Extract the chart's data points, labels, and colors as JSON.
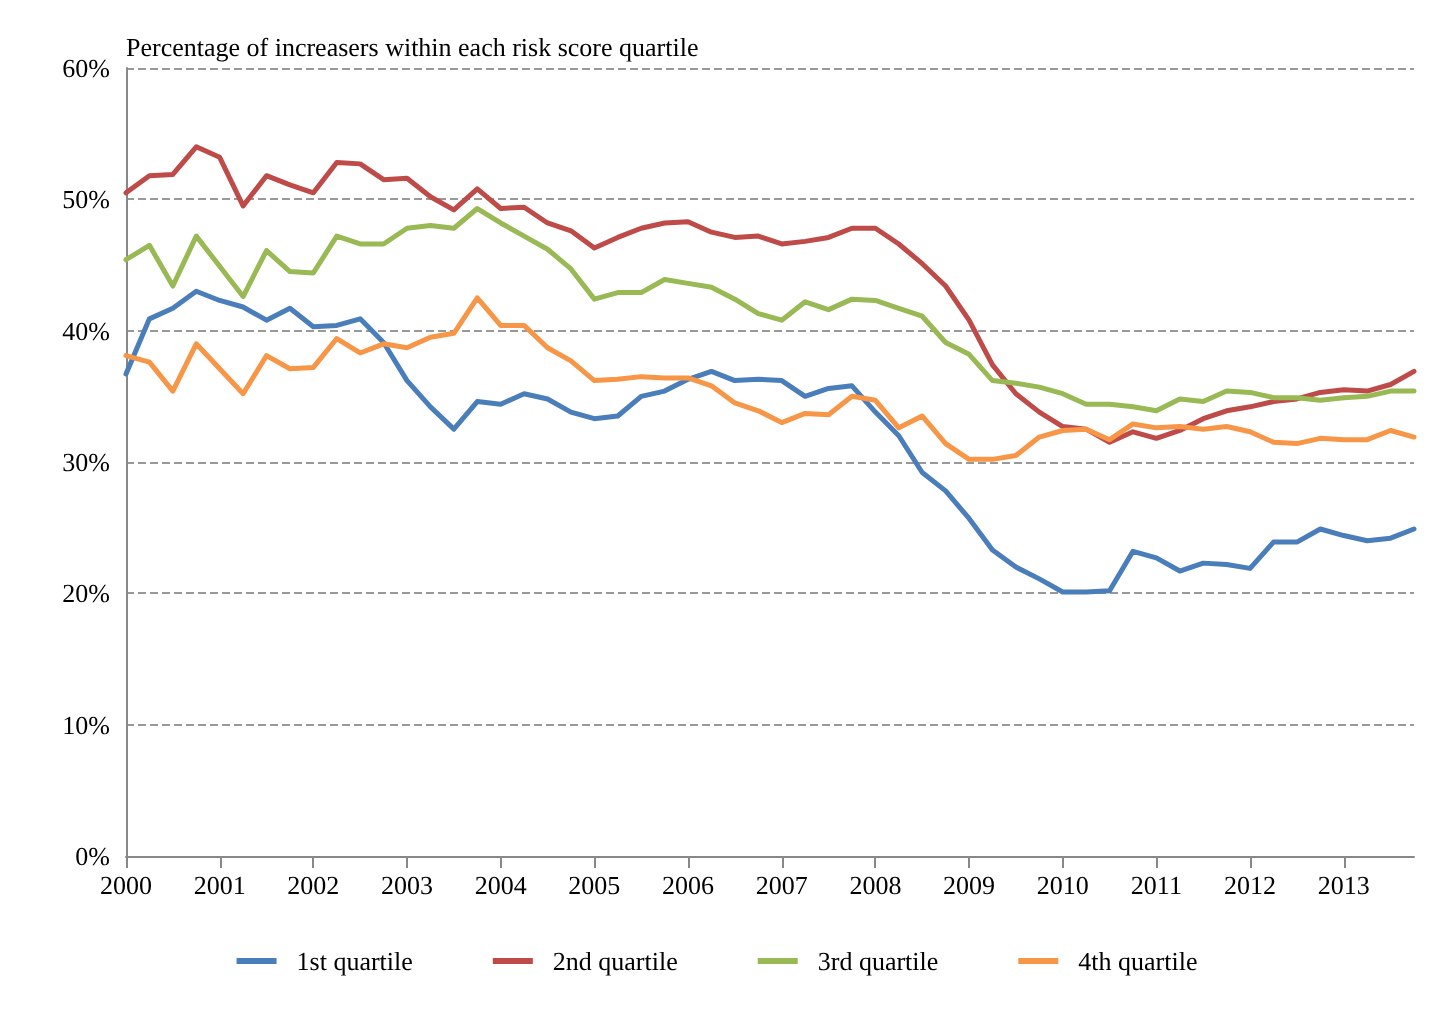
{
  "chart_data": {
    "type": "line",
    "title": "Percentage of increasers within each risk score quartile",
    "x": [
      2000,
      2000.25,
      2000.5,
      2000.75,
      2001,
      2001.25,
      2001.5,
      2001.75,
      2002,
      2002.25,
      2002.5,
      2002.75,
      2003,
      2003.25,
      2003.5,
      2003.75,
      2004,
      2004.25,
      2004.5,
      2004.75,
      2005,
      2005.25,
      2005.5,
      2005.75,
      2006,
      2006.25,
      2006.5,
      2006.75,
      2007,
      2007.25,
      2007.5,
      2007.75,
      2008,
      2008.25,
      2008.5,
      2008.75,
      2009,
      2009.25,
      2009.5,
      2009.75,
      2010,
      2010.25,
      2010.5,
      2010.75,
      2011,
      2011.25,
      2011.5,
      2011.75,
      2012,
      2012.25,
      2012.5,
      2012.75,
      2013,
      2013.25,
      2013.5,
      2013.75
    ],
    "series": [
      {
        "name": "1st quartile",
        "color": "#4a7ebb",
        "values": [
          36.7,
          40.9,
          41.7,
          43.0,
          42.3,
          41.8,
          40.8,
          41.7,
          40.3,
          40.4,
          40.9,
          39.1,
          36.2,
          34.2,
          32.5,
          34.6,
          34.4,
          35.2,
          34.8,
          33.8,
          33.3,
          33.5,
          35.0,
          35.4,
          36.3,
          36.9,
          36.2,
          36.3,
          36.2,
          35.0,
          35.6,
          35.8,
          33.8,
          32.0,
          29.2,
          27.8,
          25.7,
          23.3,
          22.0,
          21.1,
          20.1,
          20.1,
          20.2,
          23.2,
          22.7,
          21.7,
          22.3,
          22.2,
          21.9,
          23.9,
          23.9,
          24.9,
          24.4,
          24.0,
          24.2,
          24.9
        ]
      },
      {
        "name": "2nd quartile",
        "color": "#be4b48",
        "values": [
          50.5,
          51.8,
          51.9,
          54.0,
          53.2,
          49.5,
          51.8,
          51.1,
          50.5,
          52.8,
          52.7,
          51.5,
          51.6,
          50.2,
          49.2,
          50.8,
          49.3,
          49.4,
          48.2,
          47.6,
          46.3,
          47.1,
          47.8,
          48.2,
          48.3,
          47.5,
          47.1,
          47.2,
          46.6,
          46.8,
          47.1,
          47.8,
          47.8,
          46.6,
          45.1,
          43.4,
          40.8,
          37.4,
          35.2,
          33.8,
          32.7,
          32.5,
          31.5,
          32.3,
          31.8,
          32.4,
          33.3,
          33.9,
          34.2,
          34.6,
          34.8,
          35.3,
          35.5,
          35.4,
          35.9,
          36.9
        ]
      },
      {
        "name": "3rd quartile",
        "color": "#98b954",
        "values": [
          45.4,
          46.5,
          43.4,
          47.2,
          44.9,
          42.6,
          46.1,
          44.5,
          44.4,
          47.2,
          46.6,
          46.6,
          47.8,
          48.0,
          47.8,
          49.3,
          48.2,
          47.2,
          46.2,
          44.7,
          42.4,
          42.9,
          42.9,
          43.9,
          43.6,
          43.3,
          42.4,
          41.3,
          40.8,
          42.2,
          41.6,
          42.4,
          42.3,
          41.7,
          41.1,
          39.1,
          38.2,
          36.2,
          36.0,
          35.7,
          35.2,
          34.4,
          34.4,
          34.2,
          33.9,
          34.8,
          34.6,
          35.4,
          35.3,
          34.9,
          34.9,
          34.7,
          34.9,
          35.0,
          35.4,
          35.4
        ]
      },
      {
        "name": "4th quartile",
        "color": "#f79646",
        "values": [
          38.1,
          37.6,
          35.4,
          39.0,
          37.1,
          35.2,
          38.1,
          37.1,
          37.2,
          39.4,
          38.3,
          39.0,
          38.7,
          39.5,
          39.8,
          42.5,
          40.4,
          40.4,
          38.7,
          37.7,
          36.2,
          36.3,
          36.5,
          36.4,
          36.4,
          35.8,
          34.5,
          33.9,
          33.0,
          33.7,
          33.6,
          35.0,
          34.7,
          32.6,
          33.5,
          31.4,
          30.2,
          30.2,
          30.5,
          31.9,
          32.4,
          32.5,
          31.7,
          32.9,
          32.6,
          32.7,
          32.5,
          32.7,
          32.3,
          31.5,
          31.4,
          31.8,
          31.7,
          31.7,
          32.4,
          31.9
        ]
      }
    ],
    "xlim": [
      2000,
      2013.75
    ],
    "xticks": [
      2000,
      2001,
      2002,
      2003,
      2004,
      2005,
      2006,
      2007,
      2008,
      2009,
      2010,
      2011,
      2012,
      2013
    ],
    "ylim": [
      0,
      60
    ],
    "yticks": [
      {
        "value": 0,
        "label": "0%"
      },
      {
        "value": 10,
        "label": "10%"
      },
      {
        "value": 20,
        "label": "20%"
      },
      {
        "value": 30,
        "label": "30%"
      },
      {
        "value": 40,
        "label": "40%"
      },
      {
        "value": 50,
        "label": "50%"
      },
      {
        "value": 60,
        "label": "60%"
      }
    ],
    "grid": "y",
    "legend": "bottom",
    "marker": "none",
    "line_style": "solid"
  }
}
